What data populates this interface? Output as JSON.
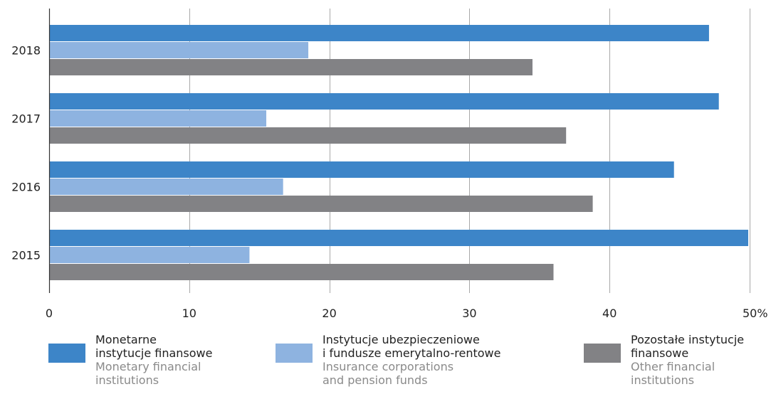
{
  "chart_data": {
    "type": "bar",
    "orientation": "horizontal",
    "categories": [
      "2018",
      "2017",
      "2016",
      "2015"
    ],
    "series": [
      {
        "name": "Monetarne instytucje finansowe",
        "color": "#3d85c8",
        "values": [
          47.1,
          47.8,
          44.6,
          49.9
        ]
      },
      {
        "name": "Instytucje ubezpieczeniowe i fundusze emerytalno-rentowe",
        "color": "#8eb3e0",
        "values": [
          18.5,
          15.5,
          16.7,
          14.3
        ]
      },
      {
        "name": "Pozostałe instytucje finansowe",
        "color": "#828285",
        "values": [
          34.5,
          36.9,
          38.8,
          36.0
        ]
      }
    ],
    "xlim": [
      0,
      50
    ],
    "x_ticks": [
      "0",
      "10",
      "20",
      "30",
      "40",
      "50%"
    ],
    "grid": true,
    "legend_position": "bottom"
  },
  "legend": [
    {
      "pl_lines": [
        "Monetarne",
        "instytucje finansowe"
      ],
      "en_lines": [
        "Monetary financial",
        "institutions"
      ],
      "color": "#3d85c8"
    },
    {
      "pl_lines": [
        "Instytucje ubezpieczeniowe",
        "i fundusze emerytalno-rentowe"
      ],
      "en_lines": [
        "Insurance corporations",
        "and pension funds"
      ],
      "color": "#8eb3e0"
    },
    {
      "pl_lines": [
        "Pozostałe instytucje",
        "finansowe"
      ],
      "en_lines": [
        "Other financial",
        "institutions"
      ],
      "color": "#828285"
    }
  ]
}
